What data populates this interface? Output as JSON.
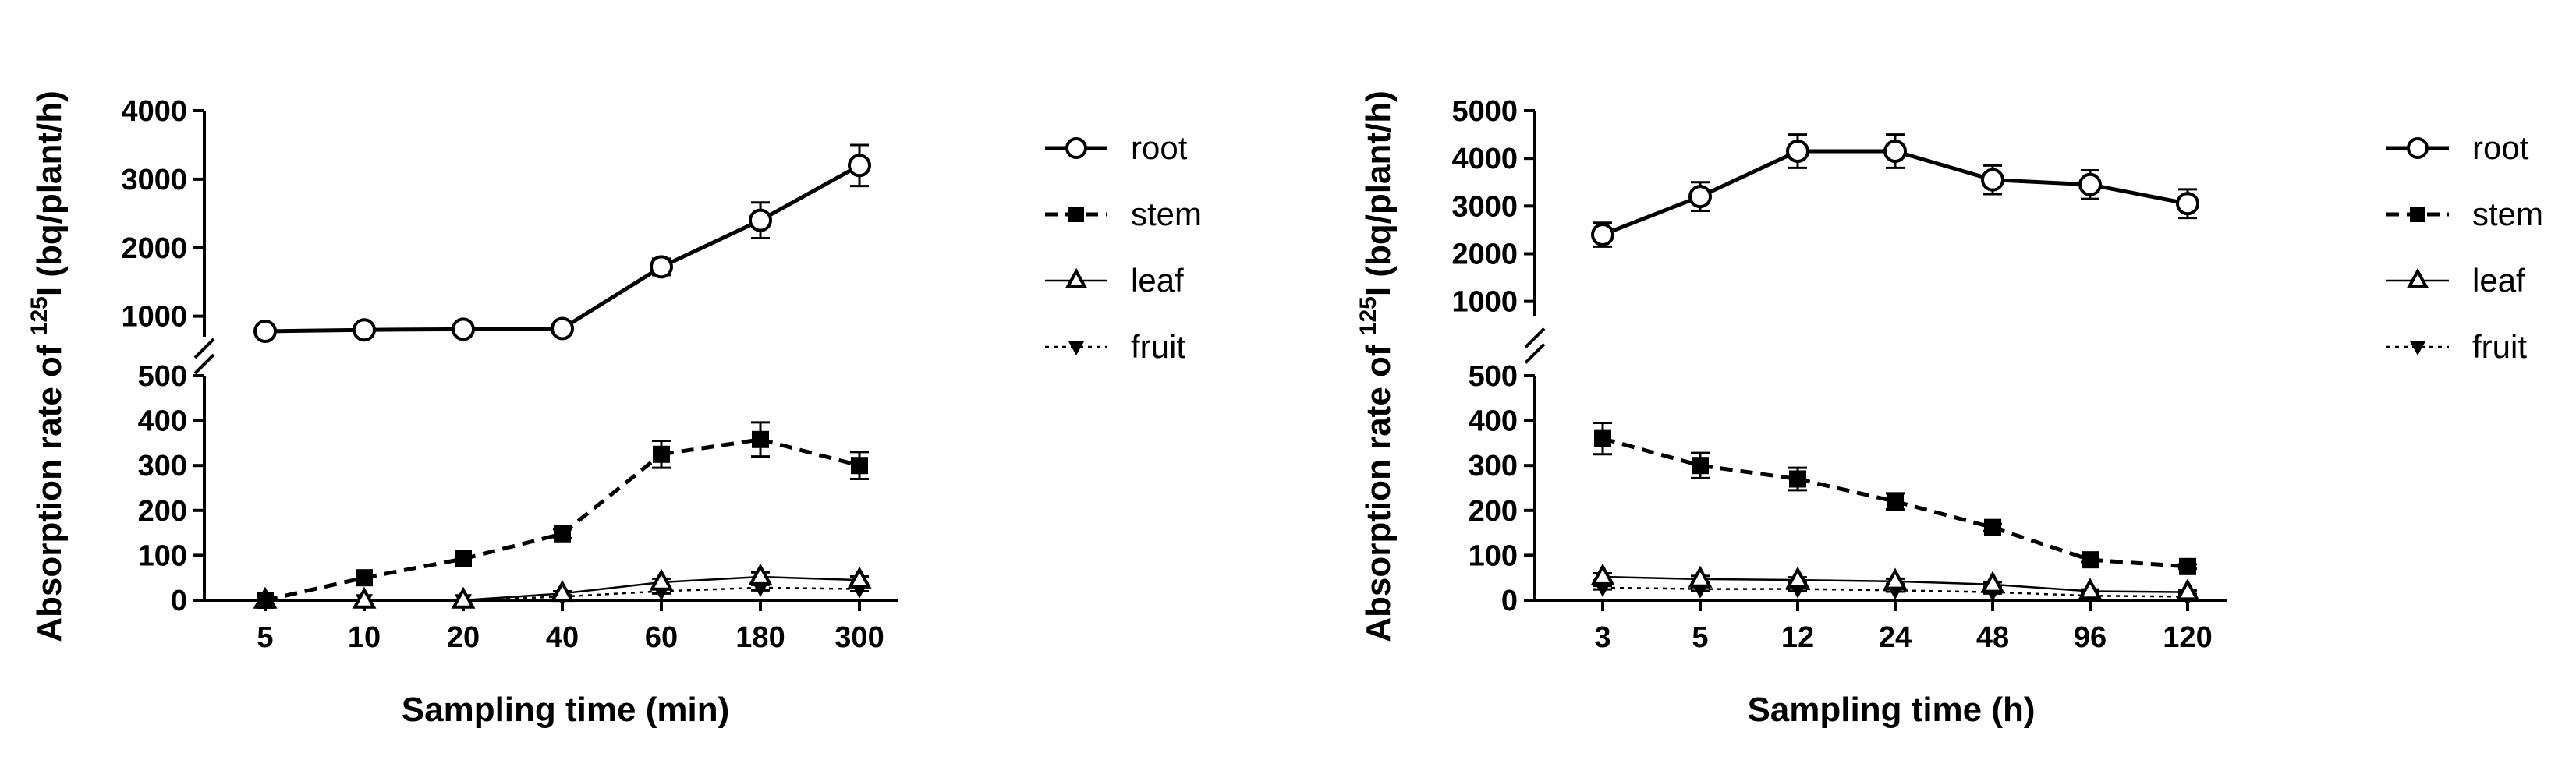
{
  "chart_data": [
    {
      "type": "line",
      "xlabel": "Sampling time (min)",
      "ylabel_prefix": "Absorption rate of ",
      "ylabel_sup": "125",
      "ylabel_suffix": "I (bq/plant/h)",
      "categories": [
        "5",
        "10",
        "20",
        "40",
        "60",
        "180",
        "300"
      ],
      "y_broken_axis": {
        "lower": {
          "ylim": [
            0,
            500
          ],
          "ticks": [
            0,
            100,
            200,
            300,
            400,
            500
          ]
        },
        "upper": {
          "ylim": [
            700,
            4000
          ],
          "ticks": [
            1000,
            2000,
            3000,
            4000
          ]
        }
      },
      "legend_position": "right",
      "series": [
        {
          "name": "root",
          "marker": "open-circle",
          "line": "solid",
          "values": [
            780,
            800,
            810,
            820,
            1720,
            2400,
            3200
          ],
          "errors": [
            0,
            30,
            20,
            20,
            120,
            260,
            300
          ]
        },
        {
          "name": "stem",
          "marker": "filled-square",
          "line": "dashed",
          "values": [
            0,
            50,
            92,
            148,
            325,
            358,
            300
          ],
          "errors": [
            0,
            0,
            0,
            10,
            30,
            38,
            30
          ]
        },
        {
          "name": "leaf",
          "marker": "open-triangle",
          "line": "solid-thin",
          "values": [
            0,
            0,
            0,
            15,
            40,
            52,
            45
          ],
          "errors": [
            0,
            0,
            0,
            5,
            8,
            10,
            8
          ]
        },
        {
          "name": "fruit",
          "marker": "filled-down-triangle",
          "line": "dotted",
          "values": [
            0,
            0,
            0,
            8,
            20,
            28,
            25
          ],
          "errors": [
            0,
            0,
            0,
            3,
            5,
            6,
            5
          ]
        }
      ]
    },
    {
      "type": "line",
      "xlabel": "Sampling time (h)",
      "ylabel_prefix": "Absorption rate of ",
      "ylabel_sup": "125",
      "ylabel_suffix": "I (bq/plant/h)",
      "categories": [
        "3",
        "5",
        "12",
        "24",
        "48",
        "96",
        "120"
      ],
      "y_broken_axis": {
        "lower": {
          "ylim": [
            0,
            500
          ],
          "ticks": [
            0,
            100,
            200,
            300,
            400,
            500
          ]
        },
        "upper": {
          "ylim": [
            700,
            5000
          ],
          "ticks": [
            1000,
            2000,
            3000,
            4000,
            5000
          ]
        }
      },
      "legend_position": "right",
      "series": [
        {
          "name": "root",
          "marker": "open-circle",
          "line": "solid",
          "values": [
            2400,
            3200,
            4150,
            4150,
            3550,
            3450,
            3050
          ],
          "errors": [
            250,
            300,
            350,
            350,
            300,
            300,
            300
          ]
        },
        {
          "name": "stem",
          "marker": "filled-square",
          "line": "dashed",
          "values": [
            360,
            300,
            270,
            220,
            162,
            90,
            75
          ],
          "errors": [
            35,
            28,
            25,
            18,
            8,
            5,
            5
          ]
        },
        {
          "name": "leaf",
          "marker": "open-triangle",
          "line": "solid-thin",
          "values": [
            52,
            47,
            45,
            42,
            35,
            20,
            18
          ],
          "errors": [
            8,
            7,
            6,
            6,
            5,
            4,
            4
          ]
        },
        {
          "name": "fruit",
          "marker": "filled-down-triangle",
          "line": "dotted",
          "values": [
            28,
            25,
            25,
            22,
            18,
            10,
            8
          ],
          "errors": [
            4,
            4,
            4,
            3,
            3,
            2,
            2
          ]
        }
      ]
    }
  ]
}
